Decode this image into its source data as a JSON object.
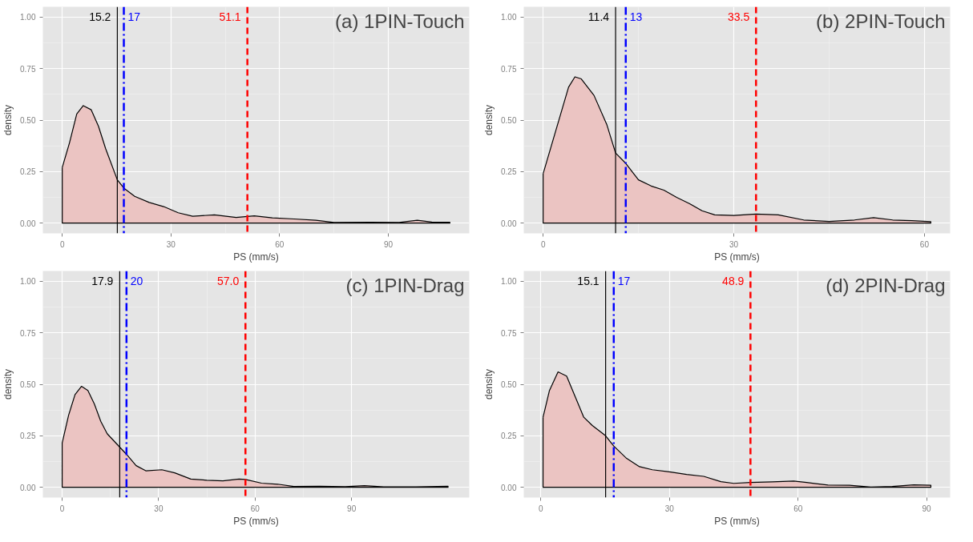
{
  "chart_data": [
    {
      "type": "area",
      "title": "(a) 1PIN-Touch",
      "xlabel": "PS (mm/s)",
      "ylabel": "density",
      "grid": true,
      "x": [
        0,
        2,
        4,
        5.8,
        8,
        10,
        12,
        15.2,
        17,
        20,
        24,
        28,
        32,
        36,
        42,
        48,
        53,
        58,
        64,
        70,
        75,
        85,
        93,
        98,
        102,
        107
      ],
      "series": [
        {
          "color": "#ebc4c2",
          "values": [
            0.27,
            0.39,
            0.53,
            0.57,
            0.55,
            0.47,
            0.36,
            0.21,
            0.17,
            0.13,
            0.1,
            0.08,
            0.05,
            0.033,
            0.04,
            0.027,
            0.035,
            0.025,
            0.02,
            0.014,
            0.003,
            0.004,
            0.003,
            0.014,
            0.005,
            0.004
          ]
        }
      ],
      "xlim": [
        -5.35,
        112.35
      ],
      "xticks": [
        0,
        30,
        60,
        90
      ],
      "ylim": [
        -0.05,
        1.05
      ],
      "yticks": [
        {
          "value": 0,
          "label": "0.00"
        },
        {
          "value": 0.25,
          "label": "0.25"
        },
        {
          "value": 0.5,
          "label": "0.50"
        },
        {
          "value": 0.75,
          "label": "0.75"
        },
        {
          "value": 1,
          "label": "1.00"
        }
      ],
      "ref_lines": [
        {
          "axis": "x",
          "value": 15.2,
          "label": "15.2",
          "color": "#000000",
          "line_style": "solid"
        },
        {
          "axis": "x",
          "value": 17,
          "label": "17",
          "color": "#0000ff",
          "line_style": "dashdot"
        },
        {
          "axis": "x",
          "value": 51.1,
          "label": "51.1",
          "color": "#ff0000",
          "line_style": "dashed"
        }
      ]
    },
    {
      "type": "area",
      "title": "(b) 2PIN-Touch",
      "xlabel": "PS (mm/s)",
      "ylabel": "density",
      "grid": true,
      "x": [
        0,
        2,
        4,
        5,
        6,
        8,
        10,
        11.4,
        13,
        15,
        17,
        19,
        21,
        23,
        25,
        27,
        30,
        33.5,
        37,
        41,
        45,
        49,
        52,
        55,
        58,
        61
      ],
      "series": [
        {
          "color": "#ebc4c2",
          "values": [
            0.24,
            0.45,
            0.66,
            0.71,
            0.7,
            0.62,
            0.48,
            0.34,
            0.29,
            0.21,
            0.18,
            0.16,
            0.125,
            0.095,
            0.06,
            0.04,
            0.037,
            0.044,
            0.04,
            0.015,
            0.008,
            0.015,
            0.026,
            0.015,
            0.012,
            0.007
          ]
        }
      ],
      "xlim": [
        -3.05,
        64.05
      ],
      "xticks": [
        0,
        30,
        60
      ],
      "ylim": [
        -0.05,
        1.05
      ],
      "yticks": [
        {
          "value": 0,
          "label": "0.00"
        },
        {
          "value": 0.25,
          "label": "0.25"
        },
        {
          "value": 0.5,
          "label": "0.50"
        },
        {
          "value": 0.75,
          "label": "0.75"
        },
        {
          "value": 1,
          "label": "1.00"
        }
      ],
      "ref_lines": [
        {
          "axis": "x",
          "value": 11.4,
          "label": "11.4",
          "color": "#000000",
          "line_style": "solid"
        },
        {
          "axis": "x",
          "value": 13,
          "label": "13",
          "color": "#0000ff",
          "line_style": "dashdot"
        },
        {
          "axis": "x",
          "value": 33.5,
          "label": "33.5",
          "color": "#ff0000",
          "line_style": "dashed"
        }
      ]
    },
    {
      "type": "area",
      "title": "(c) 1PIN-Drag",
      "xlabel": "PS (mm/s)",
      "ylabel": "density",
      "grid": true,
      "x": [
        0,
        2,
        4,
        6,
        8,
        10,
        12,
        14,
        17.9,
        20,
        23,
        26,
        31,
        35,
        40,
        45,
        50,
        55,
        57,
        62,
        67,
        72,
        80,
        88,
        94,
        100,
        110,
        120
      ],
      "series": [
        {
          "color": "#ebc4c2",
          "values": [
            0.215,
            0.35,
            0.45,
            0.49,
            0.47,
            0.405,
            0.32,
            0.26,
            0.195,
            0.16,
            0.105,
            0.08,
            0.085,
            0.07,
            0.04,
            0.034,
            0.031,
            0.04,
            0.038,
            0.02,
            0.015,
            0.004,
            0.005,
            0.003,
            0.008,
            0.002,
            0.002,
            0.005
          ]
        }
      ],
      "xlim": [
        -6.0,
        126.6
      ],
      "xticks": [
        0,
        30,
        60,
        90
      ],
      "ylim": [
        -0.05,
        1.05
      ],
      "yticks": [
        {
          "value": 0,
          "label": "0.00"
        },
        {
          "value": 0.25,
          "label": "0.25"
        },
        {
          "value": 0.5,
          "label": "0.50"
        },
        {
          "value": 0.75,
          "label": "0.75"
        },
        {
          "value": 1,
          "label": "1.00"
        }
      ],
      "ref_lines": [
        {
          "axis": "x",
          "value": 17.9,
          "label": "17.9",
          "color": "#000000",
          "line_style": "solid"
        },
        {
          "axis": "x",
          "value": 20,
          "label": "20",
          "color": "#0000ff",
          "line_style": "dashdot"
        },
        {
          "axis": "x",
          "value": 57.0,
          "label": "57.0",
          "color": "#ff0000",
          "line_style": "dashed"
        }
      ]
    },
    {
      "type": "area",
      "title": "(d) 2PIN-Drag",
      "xlabel": "PS (mm/s)",
      "ylabel": "density",
      "grid": true,
      "x": [
        0.5,
        2,
        4,
        6,
        8,
        10,
        12,
        15.1,
        17,
        20,
        23,
        26,
        30,
        34,
        38,
        42,
        45,
        48.9,
        54,
        59,
        62,
        67,
        72,
        77,
        82,
        87,
        91
      ],
      "series": [
        {
          "color": "#ebc4c2",
          "values": [
            0.34,
            0.47,
            0.56,
            0.54,
            0.44,
            0.34,
            0.3,
            0.25,
            0.2,
            0.14,
            0.1,
            0.085,
            0.075,
            0.062,
            0.053,
            0.027,
            0.019,
            0.023,
            0.026,
            0.03,
            0.023,
            0.011,
            0.01,
            0.001,
            0.004,
            0.012,
            0.01
          ]
        }
      ],
      "xlim": [
        -4.0,
        95.5
      ],
      "xticks": [
        0,
        30,
        60,
        90
      ],
      "ylim": [
        -0.05,
        1.05
      ],
      "yticks": [
        {
          "value": 0,
          "label": "0.00"
        },
        {
          "value": 0.25,
          "label": "0.25"
        },
        {
          "value": 0.5,
          "label": "0.50"
        },
        {
          "value": 0.75,
          "label": "0.75"
        },
        {
          "value": 1,
          "label": "1.00"
        }
      ],
      "ref_lines": [
        {
          "axis": "x",
          "value": 15.1,
          "label": "15.1",
          "color": "#000000",
          "line_style": "solid"
        },
        {
          "axis": "x",
          "value": 17,
          "label": "17",
          "color": "#0000ff",
          "line_style": "dashdot"
        },
        {
          "axis": "x",
          "value": 48.9,
          "label": "48.9",
          "color": "#ff0000",
          "line_style": "dashed"
        }
      ]
    }
  ]
}
